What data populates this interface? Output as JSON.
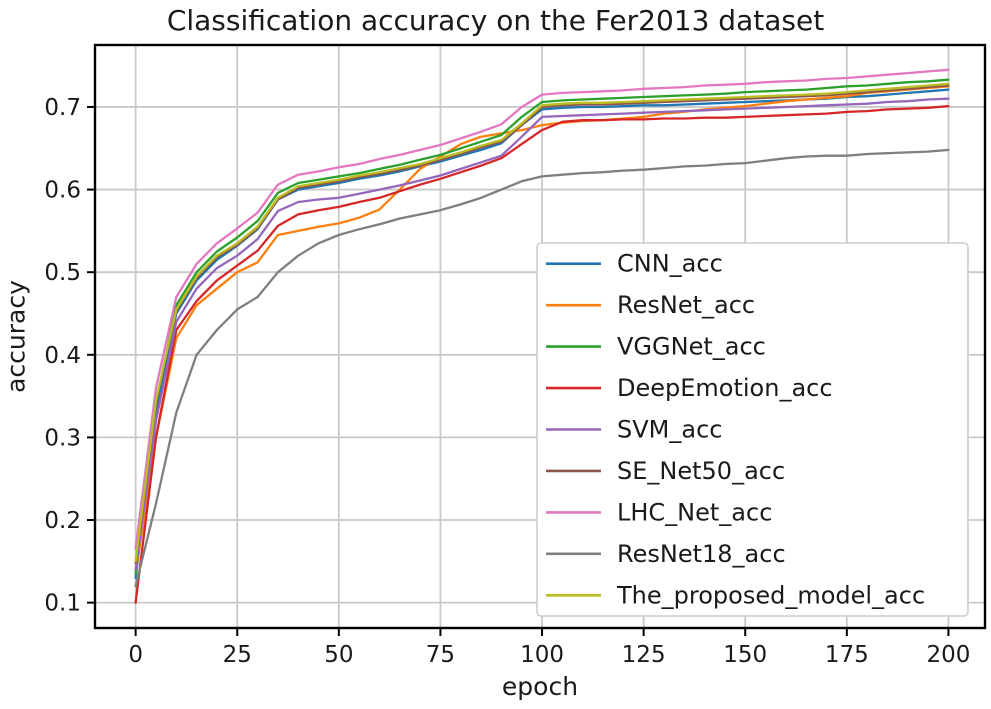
{
  "figure": {
    "background": "#ffffff"
  },
  "chart_data": {
    "type": "line",
    "title": "Classification accuracy on the Fer2013 dataset",
    "xlabel": "epoch",
    "ylabel": "accuracy",
    "xlim": [
      -10,
      209
    ],
    "ylim": [
      0.0693,
      0.775
    ],
    "xticks": [
      0,
      25,
      50,
      75,
      100,
      125,
      150,
      175,
      200
    ],
    "yticks": [
      0.1,
      0.2,
      0.3,
      0.4,
      0.5,
      0.6,
      0.7
    ],
    "grid": true,
    "legend_position": "center-right",
    "x": [
      0,
      5,
      10,
      15,
      20,
      25,
      30,
      35,
      40,
      45,
      50,
      55,
      60,
      65,
      70,
      75,
      80,
      85,
      90,
      95,
      100,
      105,
      110,
      115,
      120,
      125,
      130,
      135,
      140,
      145,
      150,
      155,
      160,
      165,
      170,
      175,
      180,
      185,
      190,
      195,
      200
    ],
    "series": [
      {
        "name": "CNN_acc",
        "color": "#1f77b4",
        "values": [
          0.13,
          0.33,
          0.45,
          0.49,
          0.515,
          0.532,
          0.552,
          0.588,
          0.6,
          0.604,
          0.608,
          0.613,
          0.617,
          0.622,
          0.628,
          0.634,
          0.641,
          0.648,
          0.656,
          0.678,
          0.697,
          0.699,
          0.7,
          0.7,
          0.701,
          0.702,
          0.702,
          0.703,
          0.704,
          0.705,
          0.706,
          0.707,
          0.708,
          0.709,
          0.71,
          0.712,
          0.713,
          0.715,
          0.717,
          0.719,
          0.721
        ]
      },
      {
        "name": "ResNet_acc",
        "color": "#ff7f0e",
        "values": [
          0.135,
          0.3,
          0.42,
          0.46,
          0.48,
          0.5,
          0.512,
          0.545,
          0.55,
          0.555,
          0.559,
          0.566,
          0.576,
          0.6,
          0.625,
          0.64,
          0.655,
          0.664,
          0.668,
          0.672,
          0.678,
          0.681,
          0.683,
          0.684,
          0.686,
          0.688,
          0.692,
          0.694,
          0.697,
          0.699,
          0.701,
          0.704,
          0.707,
          0.709,
          0.711,
          0.713,
          0.717,
          0.719,
          0.721,
          0.723,
          0.725
        ]
      },
      {
        "name": "VGGNet_acc",
        "color": "#2ca02c",
        "values": [
          0.135,
          0.34,
          0.46,
          0.5,
          0.525,
          0.542,
          0.562,
          0.596,
          0.608,
          0.612,
          0.616,
          0.62,
          0.625,
          0.63,
          0.636,
          0.642,
          0.65,
          0.658,
          0.666,
          0.688,
          0.706,
          0.708,
          0.709,
          0.71,
          0.711,
          0.712,
          0.713,
          0.714,
          0.715,
          0.716,
          0.718,
          0.719,
          0.72,
          0.721,
          0.723,
          0.725,
          0.726,
          0.728,
          0.73,
          0.731,
          0.733
        ]
      },
      {
        "name": "DeepEmotion_acc",
        "color": "#d62728",
        "values": [
          0.1,
          0.3,
          0.43,
          0.465,
          0.49,
          0.508,
          0.526,
          0.556,
          0.57,
          0.575,
          0.579,
          0.585,
          0.59,
          0.598,
          0.606,
          0.613,
          0.621,
          0.629,
          0.638,
          0.655,
          0.672,
          0.682,
          0.684,
          0.684,
          0.685,
          0.685,
          0.686,
          0.686,
          0.687,
          0.687,
          0.688,
          0.689,
          0.69,
          0.691,
          0.692,
          0.694,
          0.695,
          0.697,
          0.698,
          0.699,
          0.701
        ]
      },
      {
        "name": "SVM_acc",
        "color": "#9467bd",
        "values": [
          0.14,
          0.32,
          0.44,
          0.48,
          0.505,
          0.52,
          0.54,
          0.574,
          0.585,
          0.588,
          0.59,
          0.595,
          0.6,
          0.605,
          0.611,
          0.617,
          0.625,
          0.633,
          0.641,
          0.664,
          0.688,
          0.689,
          0.69,
          0.691,
          0.692,
          0.693,
          0.694,
          0.695,
          0.696,
          0.697,
          0.698,
          0.699,
          0.7,
          0.701,
          0.702,
          0.703,
          0.704,
          0.706,
          0.707,
          0.709,
          0.71
        ]
      },
      {
        "name": "SE_Net50_acc",
        "color": "#8c564b",
        "values": [
          0.148,
          0.343,
          0.453,
          0.493,
          0.518,
          0.533,
          0.553,
          0.588,
          0.602,
          0.606,
          0.61,
          0.615,
          0.619,
          0.624,
          0.629,
          0.636,
          0.643,
          0.651,
          0.658,
          0.678,
          0.7,
          0.702,
          0.703,
          0.703,
          0.704,
          0.705,
          0.706,
          0.707,
          0.708,
          0.709,
          0.71,
          0.711,
          0.712,
          0.713,
          0.714,
          0.716,
          0.718,
          0.72,
          0.722,
          0.724,
          0.726
        ]
      },
      {
        "name": "LHC_Net_acc",
        "color": "#e377c2",
        "values": [
          0.165,
          0.36,
          0.47,
          0.51,
          0.535,
          0.553,
          0.572,
          0.606,
          0.618,
          0.622,
          0.627,
          0.631,
          0.637,
          0.642,
          0.648,
          0.654,
          0.662,
          0.67,
          0.679,
          0.7,
          0.715,
          0.717,
          0.718,
          0.719,
          0.72,
          0.722,
          0.723,
          0.724,
          0.726,
          0.727,
          0.728,
          0.73,
          0.731,
          0.732,
          0.734,
          0.735,
          0.737,
          0.739,
          0.741,
          0.743,
          0.745
        ]
      },
      {
        "name": "ResNet18_acc",
        "color": "#7f7f7f",
        "values": [
          0.12,
          0.22,
          0.33,
          0.4,
          0.43,
          0.455,
          0.47,
          0.5,
          0.52,
          0.535,
          0.545,
          0.552,
          0.558,
          0.565,
          0.57,
          0.575,
          0.582,
          0.59,
          0.6,
          0.61,
          0.616,
          0.618,
          0.62,
          0.621,
          0.623,
          0.624,
          0.626,
          0.628,
          0.629,
          0.631,
          0.632,
          0.635,
          0.638,
          0.64,
          0.641,
          0.641,
          0.643,
          0.644,
          0.645,
          0.646,
          0.648
        ]
      },
      {
        "name": "The_proposed_model_acc",
        "color": "#bcbd22",
        "values": [
          0.15,
          0.345,
          0.455,
          0.495,
          0.52,
          0.535,
          0.555,
          0.59,
          0.604,
          0.608,
          0.612,
          0.617,
          0.621,
          0.626,
          0.631,
          0.638,
          0.645,
          0.653,
          0.66,
          0.68,
          0.702,
          0.704,
          0.705,
          0.705,
          0.706,
          0.707,
          0.708,
          0.709,
          0.71,
          0.711,
          0.712,
          0.713,
          0.714,
          0.715,
          0.716,
          0.718,
          0.72,
          0.722,
          0.724,
          0.726,
          0.728
        ]
      }
    ],
    "style": {
      "grid_color": "#c9c9c9",
      "spine_color": "#000000",
      "text_color": "#1a1a1a",
      "legend_border": "#cccccc",
      "legend_bg": "#ffffff",
      "plot_bg": "#ffffff"
    }
  }
}
